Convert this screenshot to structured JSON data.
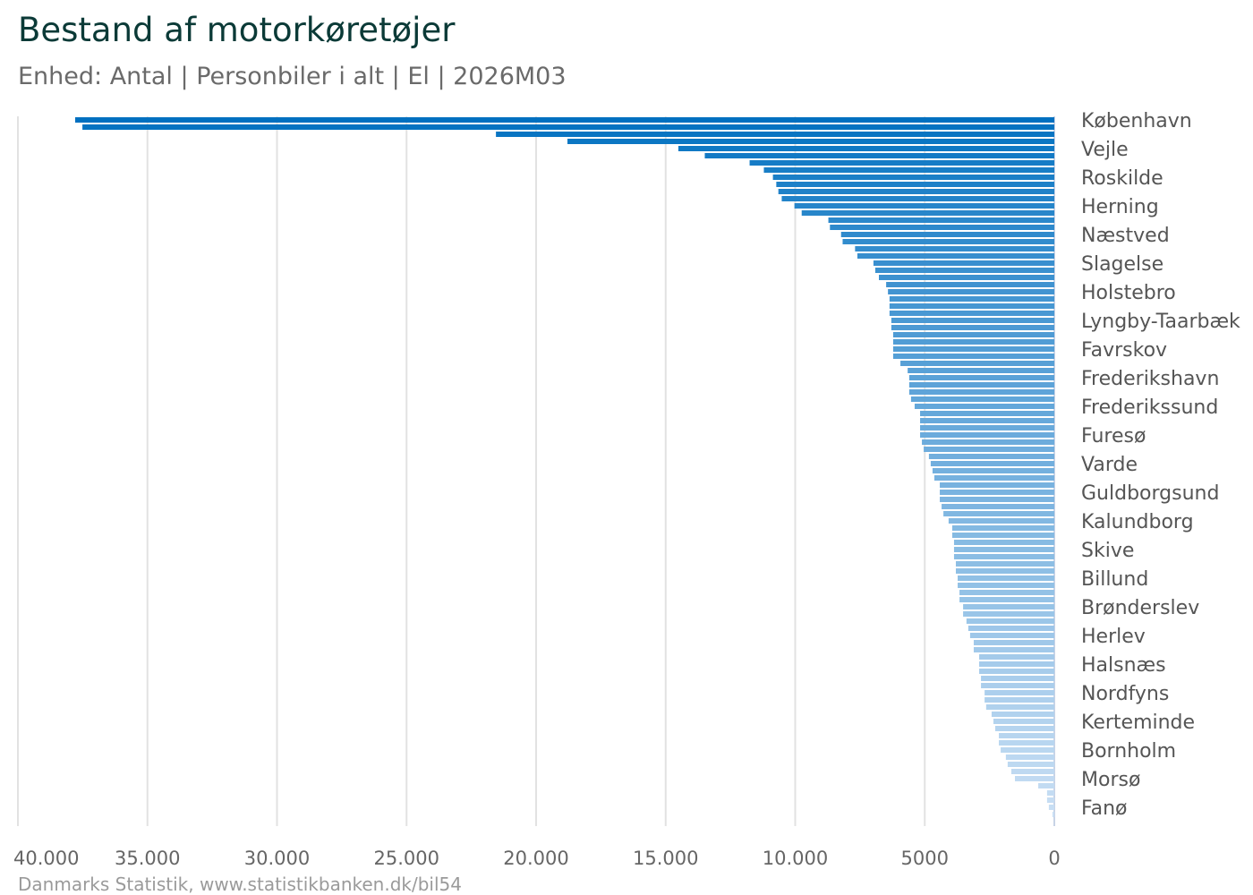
{
  "header": {
    "title": "Bestand af motorkøretøjer",
    "subtitle": "Enhed: Antal | Personbiler i alt | El | 2026M03"
  },
  "footer": {
    "source": "Danmarks Statistik, www.statistikbanken.dk/bil54"
  },
  "colors": {
    "bar_start": "#0070c0",
    "bar_end": "#c9dff4",
    "grid": "#e2e2e2",
    "title": "#0b3a37"
  },
  "chart_data": {
    "type": "bar",
    "orientation": "horizontal",
    "x_reversed": true,
    "title": "Bestand af motorkøretøjer",
    "subtitle": "Enhed: Antal | Personbiler i alt | El | 2026M03",
    "xlabel": "",
    "ylabel": "",
    "xlim": [
      0,
      40000
    ],
    "grid": true,
    "x_ticks": [
      0,
      5000,
      10000,
      15000,
      20000,
      25000,
      30000,
      35000,
      40000
    ],
    "x_tick_labels": [
      "0",
      "5000",
      "10.000",
      "15.000",
      "20.000",
      "25.000",
      "30.000",
      "35.000",
      "40.000"
    ],
    "categories": [
      "København",
      "",
      "",
      "",
      "Vejle",
      "",
      "",
      "",
      "Roskilde",
      "",
      "",
      "",
      "Herning",
      "",
      "",
      "",
      "Næstved",
      "",
      "",
      "",
      "Slagelse",
      "",
      "",
      "",
      "Holstebro",
      "",
      "",
      "",
      "Lyngby-Taarbæk",
      "",
      "",
      "",
      "Favrskov",
      "",
      "",
      "",
      "Frederikshavn",
      "",
      "",
      "",
      "Frederikssund",
      "",
      "",
      "",
      "Furesø",
      "",
      "",
      "",
      "Varde",
      "",
      "",
      "",
      "Guldborgsund",
      "",
      "",
      "",
      "Kalundborg",
      "",
      "",
      "",
      "Skive",
      "",
      "",
      "",
      "Billund",
      "",
      "",
      "",
      "Brønderslev",
      "",
      "",
      "",
      "Herlev",
      "",
      "",
      "",
      "Halsnæs",
      "",
      "",
      "",
      "Nordfyns",
      "",
      "",
      "",
      "Kerteminde",
      "",
      "",
      "",
      "Bornholm",
      "",
      "",
      "",
      "Morsø",
      "",
      "",
      "",
      "Fanø",
      ""
    ],
    "values": [
      37790,
      37510,
      21550,
      18790,
      14510,
      13490,
      11760,
      11210,
      10860,
      10730,
      10650,
      10520,
      10030,
      9750,
      8720,
      8660,
      8230,
      8170,
      7690,
      7600,
      6980,
      6910,
      6770,
      6490,
      6420,
      6360,
      6360,
      6360,
      6290,
      6290,
      6220,
      6220,
      6220,
      6220,
      5940,
      5660,
      5600,
      5600,
      5600,
      5530,
      5390,
      5180,
      5180,
      5180,
      5180,
      5110,
      5040,
      4840,
      4770,
      4700,
      4630,
      4420,
      4420,
      4420,
      4350,
      4280,
      4080,
      3940,
      3940,
      3870,
      3870,
      3870,
      3800,
      3800,
      3730,
      3730,
      3660,
      3660,
      3520,
      3520,
      3390,
      3320,
      3250,
      3110,
      3110,
      2900,
      2900,
      2900,
      2830,
      2830,
      2690,
      2690,
      2630,
      2420,
      2350,
      2280,
      2140,
      2140,
      2070,
      1870,
      1800,
      1660,
      1520,
      620,
      280,
      280,
      210,
      70
    ]
  }
}
